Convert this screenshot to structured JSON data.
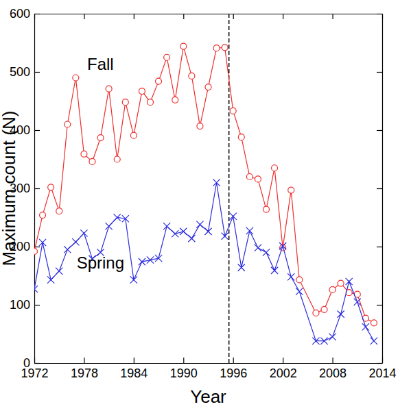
{
  "chart_data": {
    "type": "line",
    "x_label": "Year",
    "y_label": "Maximum count (N)",
    "x": [
      1972,
      1973,
      1974,
      1975,
      1976,
      1977,
      1978,
      1979,
      1980,
      1981,
      1982,
      1983,
      1984,
      1985,
      1986,
      1987,
      1988,
      1989,
      1990,
      1991,
      1992,
      1993,
      1994,
      1995,
      1996,
      1997,
      1998,
      1999,
      2000,
      2001,
      2002,
      2003,
      2004,
      2006,
      2007,
      2008,
      2009,
      2010,
      2011,
      2012,
      2013
    ],
    "series": [
      {
        "name": "Fall",
        "color": "#ee2d2d",
        "marker": "circle",
        "line_style": "solid",
        "values": [
          192,
          254,
          302,
          261,
          410,
          490,
          359,
          346,
          387,
          471,
          350,
          448,
          391,
          467,
          448,
          484,
          525,
          452,
          544,
          493,
          407,
          474,
          541,
          542,
          433,
          388,
          320,
          316,
          264,
          335,
          198,
          297,
          143,
          86,
          92,
          126,
          137,
          121,
          118,
          77,
          69
        ]
      },
      {
        "name": "Spring",
        "color": "#2b2bdc",
        "marker": "x",
        "line_style": "solid",
        "values": [
          127,
          207,
          143,
          158,
          195,
          208,
          223,
          179,
          190,
          235,
          250,
          248,
          143,
          174,
          177,
          180,
          235,
          222,
          226,
          214,
          238,
          226,
          310,
          218,
          252,
          164,
          227,
          198,
          190,
          159,
          201,
          148,
          123,
          38,
          38,
          45,
          84,
          140,
          105,
          62,
          38
        ]
      }
    ],
    "xlim": [
      1972,
      2014
    ],
    "xticks": [
      1972,
      1978,
      1984,
      1990,
      1996,
      2002,
      2008,
      2014
    ],
    "ylim": [
      0,
      600
    ],
    "yticks": [
      0,
      100,
      200,
      300,
      400,
      500,
      600
    ],
    "vlines": [
      1995.5
    ],
    "grid": false
  }
}
